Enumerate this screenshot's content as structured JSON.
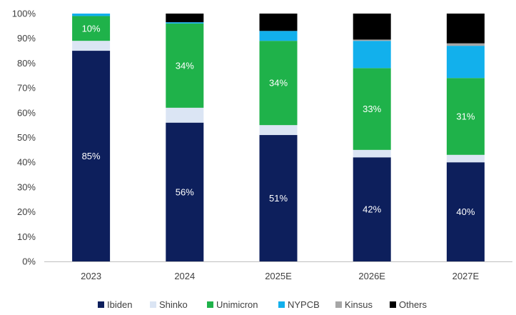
{
  "chart_data": {
    "type": "bar",
    "stacked": true,
    "categories": [
      "2023",
      "2024",
      "2025E",
      "2026E",
      "2027E"
    ],
    "ylim": [
      0,
      100
    ],
    "y_ticks": [
      "0%",
      "10%",
      "20%",
      "30%",
      "40%",
      "50%",
      "60%",
      "70%",
      "80%",
      "90%",
      "100%"
    ],
    "legend_position": "bottom",
    "grid": false,
    "series": [
      {
        "name": "Ibiden",
        "color": "#0d1f5c",
        "values": [
          85,
          56,
          51,
          42,
          40
        ],
        "labels": [
          "85%",
          "56%",
          "51%",
          "42%",
          "40%"
        ]
      },
      {
        "name": "Shinko",
        "color": "#dbe5f4",
        "values": [
          4,
          6,
          4,
          3,
          3
        ],
        "labels": [
          "",
          "",
          "",
          "",
          ""
        ]
      },
      {
        "name": "Unimicron",
        "color": "#1fb24a",
        "values": [
          10,
          34,
          34,
          33,
          31
        ],
        "labels": [
          "10%",
          "34%",
          "34%",
          "33%",
          "31%"
        ]
      },
      {
        "name": "NYPCB",
        "color": "#12b0ec",
        "values": [
          1,
          0.5,
          4,
          11,
          13
        ],
        "labels": [
          "",
          "",
          "",
          "",
          ""
        ]
      },
      {
        "name": "Kinsus",
        "color": "#a6a6a6",
        "values": [
          0,
          0,
          0,
          0.5,
          1
        ],
        "labels": [
          "",
          "",
          "",
          "",
          ""
        ]
      },
      {
        "name": "Others",
        "color": "#000000",
        "values": [
          0,
          3.5,
          7,
          10.5,
          12
        ],
        "labels": [
          "",
          "",
          "",
          "",
          ""
        ]
      }
    ]
  }
}
